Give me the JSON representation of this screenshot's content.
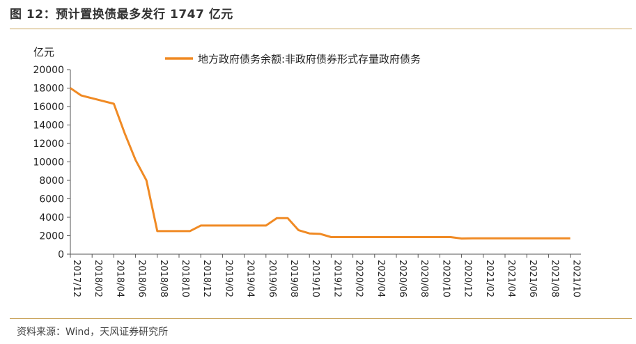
{
  "figure": {
    "title": "图 12：预计置换债最多发行 1747 亿元",
    "source": "资料来源：Wind，天风证券研究所"
  },
  "colors": {
    "line": "#f08a24",
    "axis": "#555555",
    "rule": "#c9a35a"
  },
  "chart_data": {
    "type": "line",
    "ylabel": "亿元",
    "ylim": [
      0,
      20000
    ],
    "y_ticks": [
      "0",
      "2000",
      "4000",
      "6000",
      "8000",
      "10000",
      "12000",
      "14000",
      "16000",
      "18000",
      "20000"
    ],
    "x_tick_labels": [
      "2017/12",
      "2018/02",
      "2018/04",
      "2018/06",
      "2018/08",
      "2018/10",
      "2018/12",
      "2019/02",
      "2019/04",
      "2019/06",
      "2019/08",
      "2019/10",
      "2019/12",
      "2020/02",
      "2020/04",
      "2020/06",
      "2020/08",
      "2020/10",
      "2020/12",
      "2021/02",
      "2021/04",
      "2021/06",
      "2021/08",
      "2021/10"
    ],
    "legend_position": "top-center",
    "grid": false,
    "series": [
      {
        "name": "地方政府债务余额:非政府债券形式存量政府债务",
        "x": [
          "2017/12",
          "2018/01",
          "2018/02",
          "2018/03",
          "2018/04",
          "2018/05",
          "2018/06",
          "2018/07",
          "2018/08",
          "2018/09",
          "2018/10",
          "2018/11",
          "2018/12",
          "2019/01",
          "2019/02",
          "2019/03",
          "2019/04",
          "2019/05",
          "2019/06",
          "2019/07",
          "2019/08",
          "2019/09",
          "2019/10",
          "2019/11",
          "2019/12",
          "2020/01",
          "2020/02",
          "2020/03",
          "2020/04",
          "2020/05",
          "2020/06",
          "2020/07",
          "2020/08",
          "2020/09",
          "2020/10",
          "2020/11",
          "2020/12",
          "2021/01",
          "2021/02",
          "2021/03",
          "2021/04",
          "2021/05",
          "2021/06",
          "2021/07",
          "2021/08",
          "2021/09",
          "2021/10"
        ],
        "values": [
          18000,
          17200,
          16900,
          16600,
          16300,
          13100,
          10200,
          8000,
          2500,
          2500,
          2500,
          2500,
          3100,
          3100,
          3100,
          3100,
          3100,
          3100,
          3100,
          3900,
          3900,
          2600,
          2250,
          2200,
          1850,
          1850,
          1850,
          1850,
          1850,
          1850,
          1850,
          1850,
          1850,
          1850,
          1850,
          1850,
          1700,
          1720,
          1720,
          1720,
          1720,
          1720,
          1720,
          1720,
          1720,
          1720,
          1720
        ]
      }
    ]
  }
}
